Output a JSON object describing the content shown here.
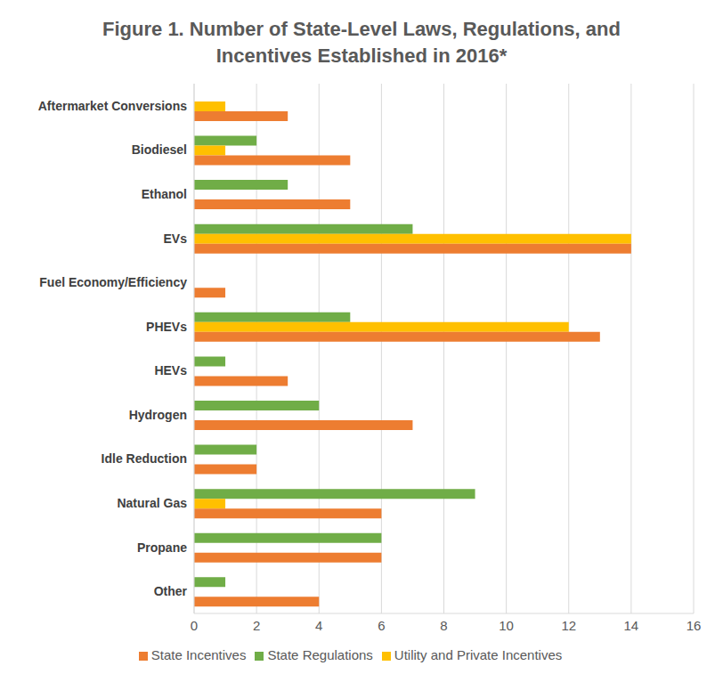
{
  "chart_data": {
    "type": "bar",
    "title": "Figure 1. Number of State-Level Laws, Regulations, and Incentives Established in 2016*",
    "orientation": "horizontal",
    "categories": [
      "Aftermarket Conversions",
      "Biodiesel",
      "Ethanol",
      "EVs",
      "Fuel Economy/Efficiency",
      "PHEVs",
      "HEVs",
      "Hydrogen",
      "Idle Reduction",
      "Natural Gas",
      "Propane",
      "Other"
    ],
    "series": [
      {
        "name": "State Regulations",
        "color": "#70ad47",
        "values": [
          0,
          2,
          3,
          7,
          0,
          5,
          1,
          4,
          2,
          9,
          6,
          1
        ]
      },
      {
        "name": "Utility and Private Incentives",
        "color": "#ffc000",
        "values": [
          1,
          1,
          0,
          14,
          0,
          12,
          0,
          0,
          0,
          1,
          0,
          0
        ]
      },
      {
        "name": "State Incentives",
        "color": "#ed7d31",
        "values": [
          3,
          5,
          5,
          14,
          1,
          13,
          3,
          7,
          2,
          6,
          6,
          4
        ]
      }
    ],
    "xlim": [
      0,
      16
    ],
    "xticks": [
      0,
      2,
      4,
      6,
      8,
      10,
      12,
      14,
      16
    ],
    "grid": true,
    "legend": "bottom"
  }
}
